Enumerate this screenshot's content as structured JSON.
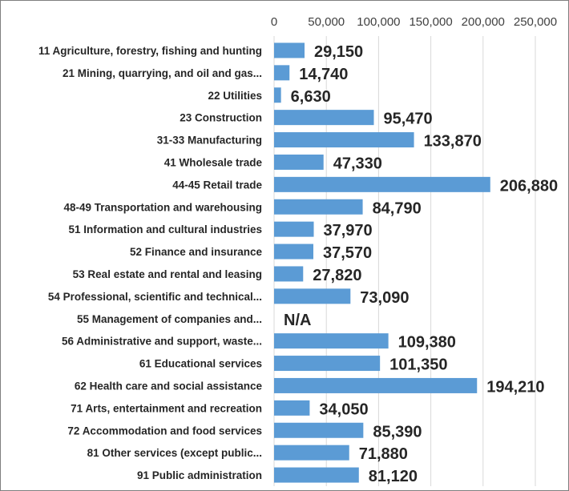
{
  "chart_data": {
    "type": "bar",
    "orientation": "horizontal",
    "title": "",
    "xlabel": "",
    "ylabel": "",
    "xlim": [
      0,
      250000
    ],
    "ticks": [
      "0",
      "50,000",
      "100,000",
      "150,000",
      "200,000",
      "250,000"
    ],
    "tick_values": [
      0,
      50000,
      100000,
      150000,
      200000,
      250000
    ],
    "tick_position": "top",
    "grid": true,
    "legend": "none",
    "bar_color": "#5b9bd5",
    "categories": [
      "11 Agriculture, forestry, fishing and hunting",
      "21 Mining, quarrying, and oil and gas...",
      "22 Utilities",
      "23 Construction",
      "31-33 Manufacturing",
      "41 Wholesale trade",
      "44-45 Retail trade",
      "48-49 Transportation and warehousing",
      "51 Information and cultural industries",
      "52 Finance and insurance",
      "53 Real estate and rental and leasing",
      "54 Professional, scientific and technical...",
      "55 Management of companies and...",
      "56 Administrative and support, waste...",
      "61 Educational services",
      "62 Health care and social assistance",
      "71 Arts, entertainment and recreation",
      "72 Accommodation and food services",
      "81 Other services (except public...",
      "91 Public administration"
    ],
    "values": [
      29150,
      14740,
      6630,
      95470,
      133870,
      47330,
      206880,
      84790,
      37970,
      37570,
      27820,
      73090,
      null,
      109380,
      101350,
      194210,
      34050,
      85390,
      71880,
      81120
    ],
    "data_labels": [
      "29,150",
      "14,740",
      "6,630",
      "95,470",
      "133,870",
      "47,330",
      "206,880",
      "84,790",
      "37,970",
      "37,570",
      "27,820",
      "73,090",
      "N/A",
      "109,380",
      "101,350",
      "194,210",
      "34,050",
      "85,390",
      "71,880",
      "81,120"
    ]
  }
}
